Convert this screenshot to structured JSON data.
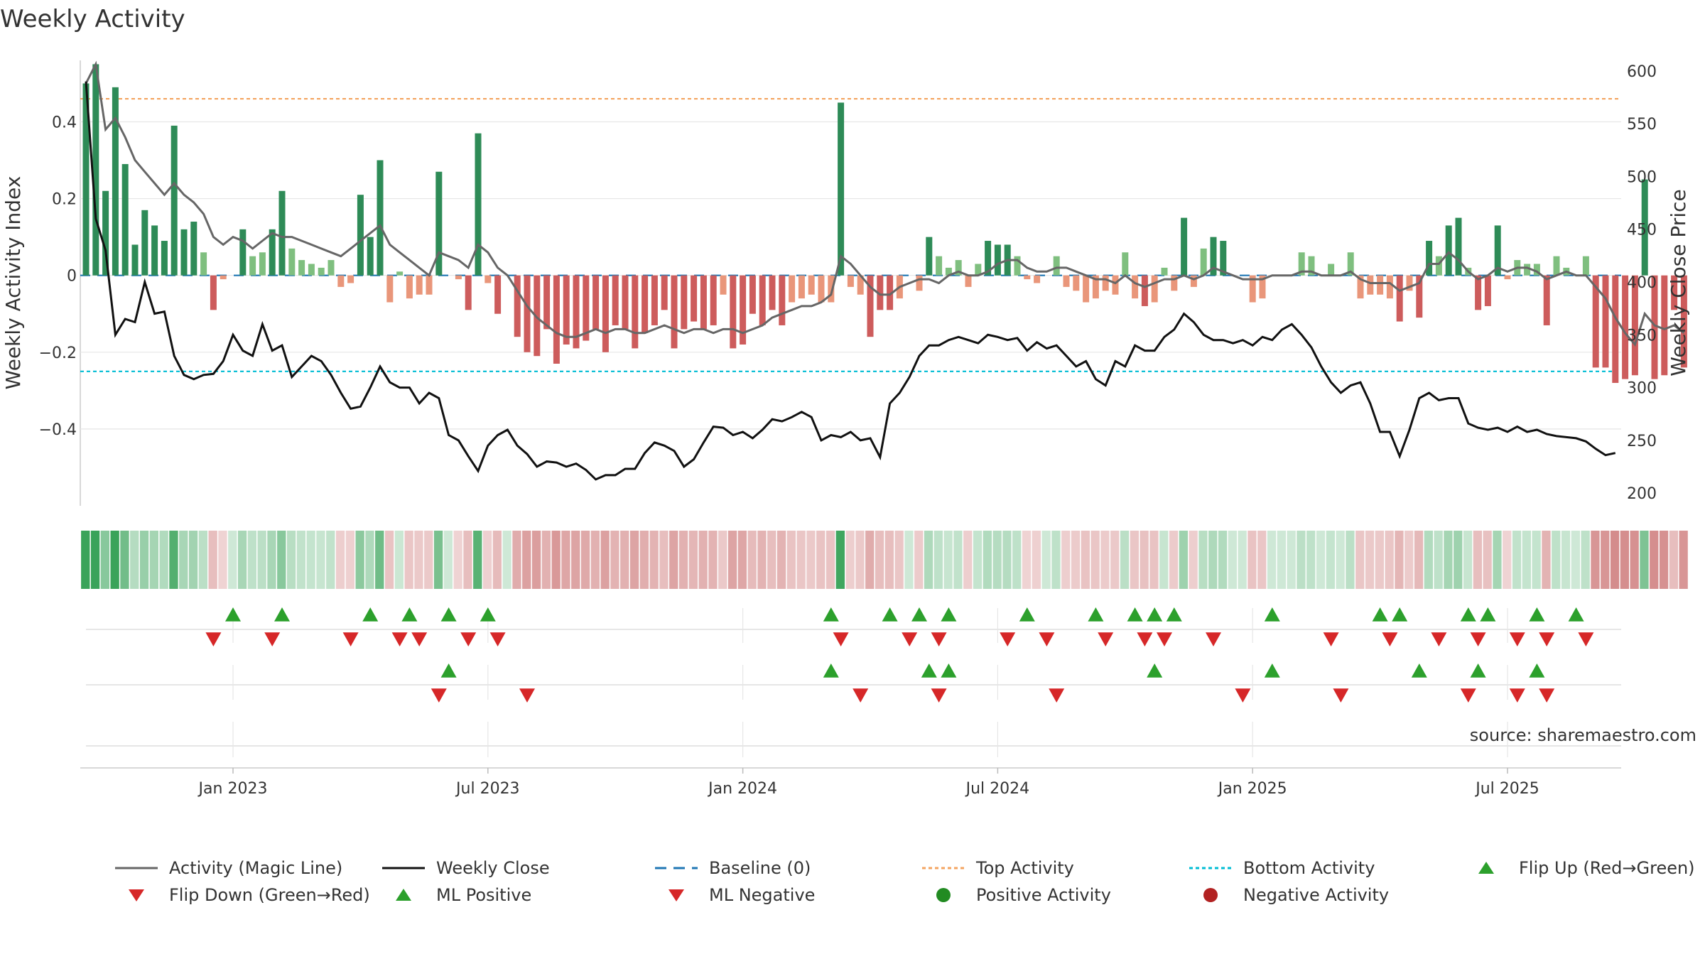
{
  "title": "Weekly Activity",
  "source": "source: sharemaestro.com",
  "colors": {
    "pos_strong": "#2e8b57",
    "pos_light": "#7fbf7f",
    "neg_strong": "#cd5c5c",
    "neg_light": "#e9967a",
    "magic": "#666666",
    "close": "#111111",
    "baseline": "#1f77b4",
    "top": "#f4a460",
    "bottom": "#00bcd4",
    "up": "#2ca02c",
    "down": "#d62728",
    "pos_dot": "#228b22",
    "neg_dot": "#b22222"
  },
  "chart_data": {
    "type": "bar",
    "title": "Weekly Activity",
    "ylabel": "Weekly Activity Index",
    "y2label": "Weekly Close Price",
    "ylim": [
      -0.6,
      0.56
    ],
    "y2lim": [
      188,
      610
    ],
    "yticks": [
      0.4,
      0.2,
      0,
      -0.2,
      -0.4
    ],
    "ytick_labels": [
      "0.4",
      "0.2",
      "0",
      "−0.2",
      "−0.4"
    ],
    "y2ticks": [
      600,
      550,
      500,
      450,
      400,
      350,
      300,
      250,
      200
    ],
    "top_activity": 0.46,
    "bottom_activity": -0.25,
    "x_start_week": 0,
    "xtick_weeks": [
      15,
      41,
      67,
      93,
      119,
      145
    ],
    "xtick_labels": [
      "Jan 2023",
      "Jul 2023",
      "Jan 2024",
      "Jul 2024",
      "Jan 2025",
      "Jul 2025"
    ],
    "activity": [
      0.5,
      0.55,
      0.22,
      0.49,
      0.29,
      0.08,
      0.17,
      0.13,
      0.09,
      0.39,
      0.12,
      0.14,
      0.06,
      -0.09,
      -0.01,
      0.0,
      0.12,
      0.05,
      0.06,
      0.12,
      0.22,
      0.07,
      0.04,
      0.03,
      0.02,
      0.04,
      -0.03,
      -0.02,
      0.21,
      0.1,
      0.3,
      -0.07,
      0.01,
      -0.06,
      -0.05,
      -0.05,
      0.27,
      0.0,
      -0.01,
      -0.09,
      0.37,
      -0.02,
      -0.1,
      0.0,
      -0.16,
      -0.2,
      -0.21,
      -0.14,
      -0.23,
      -0.18,
      -0.19,
      -0.17,
      -0.14,
      -0.2,
      -0.13,
      -0.14,
      -0.19,
      -0.15,
      -0.13,
      -0.09,
      -0.19,
      -0.14,
      -0.12,
      -0.14,
      -0.13,
      -0.05,
      -0.19,
      -0.18,
      -0.1,
      -0.13,
      -0.09,
      -0.13,
      -0.07,
      -0.06,
      -0.05,
      -0.07,
      -0.07,
      0.45,
      -0.03,
      -0.05,
      -0.16,
      -0.09,
      -0.09,
      -0.06,
      0.0,
      -0.04,
      0.1,
      0.05,
      0.02,
      0.04,
      -0.03,
      0.03,
      0.09,
      0.08,
      0.08,
      0.05,
      -0.01,
      -0.02,
      0.0,
      0.05,
      -0.03,
      -0.04,
      -0.07,
      -0.06,
      -0.04,
      -0.05,
      0.06,
      -0.06,
      -0.08,
      -0.07,
      0.02,
      -0.04,
      0.15,
      -0.03,
      0.07,
      0.1,
      0.09,
      0.0,
      0.0,
      -0.07,
      -0.06,
      0.0,
      0.0,
      0.0,
      0.06,
      0.05,
      0.0,
      0.03,
      0.0,
      0.06,
      -0.06,
      -0.05,
      -0.05,
      -0.06,
      -0.12,
      -0.04,
      -0.11,
      0.09,
      0.05,
      0.13,
      0.15,
      0.02,
      -0.09,
      -0.08,
      0.13,
      -0.01,
      0.04,
      0.03,
      0.03,
      -0.13,
      0.05,
      0.02,
      0.0,
      0.05,
      -0.24,
      -0.24,
      -0.28,
      -0.27,
      -0.26,
      0.25,
      -0.27,
      -0.26,
      -0.09,
      -0.24
    ],
    "magic_line": [
      0.5,
      0.55,
      0.38,
      0.41,
      0.36,
      0.3,
      0.27,
      0.24,
      0.21,
      0.24,
      0.21,
      0.19,
      0.16,
      0.1,
      0.08,
      0.1,
      0.09,
      0.07,
      0.09,
      0.11,
      0.1,
      0.1,
      0.09,
      0.08,
      0.07,
      0.06,
      0.05,
      0.07,
      0.09,
      0.11,
      0.13,
      0.08,
      0.06,
      0.04,
      0.02,
      0.0,
      0.06,
      0.05,
      0.04,
      0.02,
      0.08,
      0.06,
      0.02,
      0.0,
      -0.04,
      -0.08,
      -0.11,
      -0.13,
      -0.15,
      -0.16,
      -0.16,
      -0.15,
      -0.14,
      -0.15,
      -0.14,
      -0.14,
      -0.15,
      -0.15,
      -0.14,
      -0.13,
      -0.14,
      -0.15,
      -0.14,
      -0.14,
      -0.15,
      -0.14,
      -0.14,
      -0.15,
      -0.14,
      -0.13,
      -0.11,
      -0.1,
      -0.09,
      -0.08,
      -0.08,
      -0.07,
      -0.05,
      0.05,
      0.03,
      0.0,
      -0.03,
      -0.05,
      -0.05,
      -0.03,
      -0.02,
      -0.01,
      -0.01,
      -0.02,
      0.0,
      0.01,
      0.0,
      0.0,
      0.01,
      0.03,
      0.04,
      0.04,
      0.02,
      0.01,
      0.01,
      0.02,
      0.02,
      0.01,
      0.0,
      -0.01,
      -0.01,
      -0.02,
      0.0,
      -0.02,
      -0.03,
      -0.02,
      -0.01,
      -0.01,
      0.0,
      -0.01,
      0.0,
      0.02,
      0.01,
      0.0,
      -0.01,
      -0.01,
      -0.01,
      0.0,
      0.0,
      0.0,
      0.01,
      0.01,
      0.0,
      0.0,
      0.0,
      0.01,
      -0.01,
      -0.02,
      -0.02,
      -0.02,
      -0.04,
      -0.03,
      -0.02,
      0.03,
      0.03,
      0.06,
      0.04,
      0.01,
      -0.01,
      0.0,
      0.02,
      0.01,
      0.02,
      0.02,
      0.01,
      -0.01,
      0.0,
      0.01,
      0.0,
      0.0,
      -0.03,
      -0.06,
      -0.11,
      -0.15,
      -0.18,
      -0.1,
      -0.13,
      -0.14,
      -0.13,
      -0.15
    ],
    "weekly_close": [
      590,
      460,
      430,
      350,
      365,
      362,
      400,
      370,
      372,
      330,
      312,
      308,
      312,
      313,
      325,
      350,
      335,
      330,
      360,
      335,
      340,
      310,
      320,
      330,
      325,
      312,
      295,
      280,
      282,
      300,
      320,
      305,
      300,
      300,
      285,
      295,
      290,
      255,
      250,
      235,
      221,
      245,
      255,
      260,
      245,
      237,
      225,
      230,
      229,
      225,
      228,
      222,
      213,
      217,
      217,
      223,
      223,
      238,
      248,
      245,
      240,
      225,
      232,
      248,
      263,
      262,
      255,
      258,
      252,
      260,
      270,
      268,
      272,
      277,
      272,
      250,
      255,
      253,
      258,
      250,
      252,
      234,
      285,
      295,
      310,
      330,
      340,
      340,
      345,
      348,
      345,
      342,
      350,
      348,
      345,
      347,
      335,
      343,
      337,
      340,
      330,
      320,
      325,
      308,
      302,
      325,
      320,
      340,
      335,
      335,
      348,
      355,
      370,
      362,
      350,
      345,
      345,
      342,
      345,
      340,
      348,
      345,
      355,
      360,
      350,
      338,
      320,
      305,
      295,
      302,
      305,
      285,
      258,
      258,
      235,
      260,
      290,
      295,
      288,
      290,
      290,
      266,
      262,
      260,
      262,
      258,
      263,
      258,
      260,
      256,
      254,
      253,
      252,
      249,
      242,
      236,
      238
    ],
    "activity_strip": [
      0.5,
      0.55,
      0.22,
      0.49,
      0.29,
      0.08,
      0.17,
      0.13,
      0.09,
      0.39,
      0.12,
      0.14,
      0.06,
      -0.09,
      -0.01,
      0.0,
      0.12,
      0.05,
      0.06,
      0.12,
      0.22,
      0.07,
      0.04,
      0.03,
      0.02,
      0.04,
      -0.03,
      -0.02,
      0.21,
      0.1,
      0.3,
      -0.07,
      0.01,
      -0.06,
      -0.05,
      -0.05,
      0.27,
      0.0,
      -0.01,
      -0.09,
      0.37,
      -0.02,
      -0.1,
      0.0,
      -0.16,
      -0.2,
      -0.21,
      -0.14,
      -0.23,
      -0.18,
      -0.19,
      -0.17,
      -0.14,
      -0.2,
      -0.13,
      -0.14,
      -0.19,
      -0.15,
      -0.13,
      -0.09,
      -0.19,
      -0.14,
      -0.12,
      -0.14,
      -0.13,
      -0.05,
      -0.19,
      -0.18,
      -0.1,
      -0.13,
      -0.09,
      -0.13,
      -0.07,
      -0.06,
      -0.05,
      -0.07,
      -0.07,
      0.45,
      -0.03,
      -0.05,
      -0.16,
      -0.09,
      -0.09,
      -0.06,
      0.0,
      -0.04,
      0.1,
      0.05,
      0.02,
      0.04,
      -0.03,
      0.03,
      0.09,
      0.08,
      0.08,
      0.05,
      -0.01,
      -0.02,
      0.0,
      0.05,
      -0.03,
      -0.04,
      -0.07,
      -0.06,
      -0.04,
      -0.05,
      0.06,
      -0.06,
      -0.08,
      -0.07,
      0.02,
      -0.04,
      0.15,
      -0.03,
      0.07,
      0.1,
      0.09,
      0.0,
      0.0,
      -0.07,
      -0.06,
      0.0,
      0.0,
      0.0,
      0.06,
      0.05,
      0.0,
      0.03,
      0.0,
      0.06,
      -0.06,
      -0.05,
      -0.05,
      -0.06,
      -0.12,
      -0.04,
      -0.11,
      0.09,
      0.05,
      0.13,
      0.15,
      0.02,
      -0.09,
      -0.08,
      0.13,
      -0.01,
      0.04,
      0.03,
      0.03,
      -0.13,
      0.05,
      0.02,
      0.0,
      0.05,
      -0.24,
      -0.24,
      -0.28,
      -0.27,
      -0.26,
      0.25,
      -0.27,
      -0.26,
      -0.09,
      -0.24
    ],
    "flip_up_weeks": [
      15,
      20,
      29,
      33,
      37,
      41,
      76,
      82,
      85,
      88,
      96,
      103,
      107,
      109,
      111,
      121,
      132,
      134,
      141,
      143,
      148,
      152
    ],
    "flip_down_weeks": [
      13,
      19,
      27,
      32,
      34,
      39,
      42,
      77,
      84,
      87,
      94,
      98,
      104,
      108,
      110,
      115,
      127,
      133,
      138,
      142,
      146,
      149,
      153
    ],
    "ml_positive_weeks": [
      37,
      76,
      86,
      88,
      109,
      121,
      136,
      142,
      148
    ],
    "ml_negative_weeks": [
      36,
      45,
      79,
      87,
      99,
      118,
      128,
      141,
      146,
      149
    ],
    "legend": [
      {
        "label": "Activity (Magic Line)",
        "kind": "line",
        "color": "#666666"
      },
      {
        "label": "Weekly Close",
        "kind": "line",
        "color": "#111111"
      },
      {
        "label": "Baseline (0)",
        "kind": "dash",
        "color": "#1f77b4"
      },
      {
        "label": "Top Activity",
        "kind": "dot",
        "color": "#f4a460"
      },
      {
        "label": "Bottom Activity",
        "kind": "dot",
        "color": "#00bcd4"
      },
      {
        "label": "Flip Up (Red→Green)",
        "kind": "tri-up",
        "color": "#2ca02c"
      },
      {
        "label": "Flip Down (Green→Red)",
        "kind": "tri-down",
        "color": "#d62728"
      },
      {
        "label": "ML Positive",
        "kind": "tri-up",
        "color": "#2ca02c"
      },
      {
        "label": "ML Negative",
        "kind": "tri-down",
        "color": "#d62728"
      },
      {
        "label": "Positive Activity",
        "kind": "circle",
        "color": "#228b22"
      },
      {
        "label": "Negative Activity",
        "kind": "circle",
        "color": "#b22222"
      }
    ]
  }
}
